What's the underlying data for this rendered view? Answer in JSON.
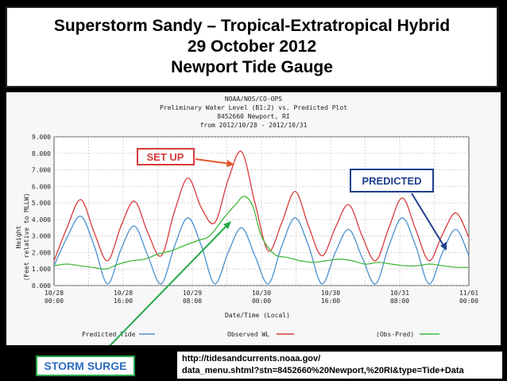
{
  "title": {
    "line1": "Superstorm Sandy – Tropical-Extratropical Hybrid",
    "line2": "29 October 2012",
    "line3": "Newport Tide Gauge"
  },
  "chart_header": {
    "line1": "NOAA/NOS/CO-OPS",
    "line2": "Preliminary  Water Level (B1:2) vs. Predicted Plot",
    "line3": "8452660 Newport, RI",
    "line4": "from 2012/10/28 - 2012/10/31"
  },
  "chart_data": {
    "type": "line",
    "xlabel": "Date/Time (Local)",
    "ylabel_lines": [
      "Height",
      "(Feet relative to MLLW)"
    ],
    "ylim": [
      0,
      9
    ],
    "yticks": [
      "0.000",
      "1.000",
      "2.000",
      "3.000",
      "4.000",
      "5.000",
      "6.000",
      "7.000",
      "8.000",
      "9.000"
    ],
    "xlim": [
      0,
      96
    ],
    "xticks": [
      {
        "x": 0,
        "date": "10/28",
        "time": "00:00"
      },
      {
        "x": 16,
        "date": "10/28",
        "time": "16:00"
      },
      {
        "x": 32,
        "date": "10/29",
        "time": "08:00"
      },
      {
        "x": 48,
        "date": "10/30",
        "time": "00:00"
      },
      {
        "x": 64,
        "date": "10/30",
        "time": "16:00"
      },
      {
        "x": 80,
        "date": "10/31",
        "time": "08:00"
      },
      {
        "x": 96,
        "date": "11/01",
        "time": "00:00"
      }
    ],
    "grid": true,
    "series": [
      {
        "name": "Predicted Tide",
        "color": "#4a90d0",
        "points": [
          [
            0,
            1.2
          ],
          [
            3,
            2.9
          ],
          [
            6.2,
            4.2
          ],
          [
            9.3,
            2.4
          ],
          [
            12.4,
            0.1
          ],
          [
            15.5,
            2.2
          ],
          [
            18.6,
            3.6
          ],
          [
            21.7,
            1.8
          ],
          [
            24.8,
            0.1
          ],
          [
            27.9,
            2.4
          ],
          [
            31,
            4.1
          ],
          [
            34.1,
            2.4
          ],
          [
            37.2,
            0.1
          ],
          [
            40.3,
            2.0
          ],
          [
            43.4,
            3.5
          ],
          [
            46.5,
            1.8
          ],
          [
            49.6,
            0.1
          ],
          [
            52.7,
            2.4
          ],
          [
            55.8,
            4.1
          ],
          [
            58.9,
            2.4
          ],
          [
            62,
            0.1
          ],
          [
            65.1,
            2.0
          ],
          [
            68.2,
            3.4
          ],
          [
            71.3,
            1.7
          ],
          [
            74.4,
            0.1
          ],
          [
            77.5,
            2.4
          ],
          [
            80.6,
            4.1
          ],
          [
            83.7,
            2.4
          ],
          [
            86.8,
            0.1
          ],
          [
            89.9,
            2.0
          ],
          [
            93,
            3.4
          ],
          [
            96,
            1.8
          ]
        ]
      },
      {
        "name": "Observed WL",
        "color": "#d83a3a",
        "points": [
          [
            0,
            1.5
          ],
          [
            3,
            3.5
          ],
          [
            6.2,
            5.2
          ],
          [
            9.3,
            3.2
          ],
          [
            12.4,
            1.5
          ],
          [
            15.5,
            3.6
          ],
          [
            18.6,
            5.1
          ],
          [
            21.7,
            3.2
          ],
          [
            24.8,
            1.8
          ],
          [
            27.9,
            4.5
          ],
          [
            31,
            6.5
          ],
          [
            34.1,
            4.7
          ],
          [
            37.2,
            3.8
          ],
          [
            40.3,
            6.4
          ],
          [
            43.4,
            8.1
          ],
          [
            46.5,
            5.0
          ],
          [
            49.6,
            2.1
          ],
          [
            52.7,
            3.8
          ],
          [
            55.8,
            5.7
          ],
          [
            58.9,
            3.6
          ],
          [
            62,
            1.8
          ],
          [
            65.1,
            3.5
          ],
          [
            68.2,
            4.9
          ],
          [
            71.3,
            3.0
          ],
          [
            74.4,
            1.5
          ],
          [
            77.5,
            3.5
          ],
          [
            80.6,
            5.3
          ],
          [
            83.7,
            3.4
          ],
          [
            86.8,
            1.5
          ],
          [
            89.9,
            3.1
          ],
          [
            93,
            4.4
          ],
          [
            96,
            2.9
          ]
        ]
      },
      {
        "name": "(Obs-Pred)",
        "color": "#44b83a",
        "points": [
          [
            0,
            1.2
          ],
          [
            3,
            1.3
          ],
          [
            6,
            1.2
          ],
          [
            9,
            1.1
          ],
          [
            12,
            1.0
          ],
          [
            15,
            1.3
          ],
          [
            18,
            1.5
          ],
          [
            21,
            1.6
          ],
          [
            24,
            1.9
          ],
          [
            27,
            2.1
          ],
          [
            30,
            2.4
          ],
          [
            33,
            2.7
          ],
          [
            36,
            3.0
          ],
          [
            39,
            4.0
          ],
          [
            42,
            4.9
          ],
          [
            44,
            5.4
          ],
          [
            46,
            4.8
          ],
          [
            48,
            3.0
          ],
          [
            51,
            1.9
          ],
          [
            54,
            1.7
          ],
          [
            57,
            1.5
          ],
          [
            60,
            1.4
          ],
          [
            63,
            1.5
          ],
          [
            66,
            1.6
          ],
          [
            69,
            1.5
          ],
          [
            72,
            1.3
          ],
          [
            75,
            1.4
          ],
          [
            78,
            1.3
          ],
          [
            81,
            1.2
          ],
          [
            84,
            1.2
          ],
          [
            87,
            1.3
          ],
          [
            90,
            1.2
          ],
          [
            93,
            1.1
          ],
          [
            96,
            1.1
          ]
        ]
      }
    ],
    "annotations": [
      {
        "text": "SET UP",
        "color": "#d83a3a"
      },
      {
        "text": "PREDICTED",
        "color": "#1f3f8f"
      }
    ]
  },
  "footer": {
    "storm_surge_label": "STORM SURGE",
    "url_line1": "http://tidesandcurrents.noaa.gov/",
    "url_line2": "data_menu.shtml?stn=8452660%20Newport,%20RI&type=Tide+Data"
  }
}
